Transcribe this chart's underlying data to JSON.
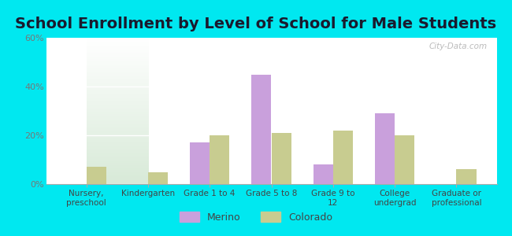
{
  "title": "School Enrollment by Level of School for Male Students",
  "categories": [
    "Nursery,\npreschool",
    "Kindergarten",
    "Grade 1 to 4",
    "Grade 5 to 8",
    "Grade 9 to\n12",
    "College\nundergrad",
    "Graduate or\nprofessional"
  ],
  "merino": [
    0,
    0,
    17,
    45,
    8,
    29,
    0
  ],
  "colorado": [
    7,
    5,
    20,
    21,
    22,
    20,
    6
  ],
  "merino_color": "#c9a0dc",
  "colorado_color": "#c8cc90",
  "background_outer": "#00e8f0",
  "ylim": [
    0,
    60
  ],
  "yticks": [
    0,
    20,
    40,
    60
  ],
  "ytick_labels": [
    "0%",
    "20%",
    "40%",
    "60%"
  ],
  "title_fontsize": 14,
  "title_color": "#1a1a2e",
  "legend_labels": [
    "Merino",
    "Colorado"
  ],
  "bar_width": 0.32,
  "watermark": "City-Data.com",
  "tick_color": "#777777",
  "label_color": "#444444"
}
